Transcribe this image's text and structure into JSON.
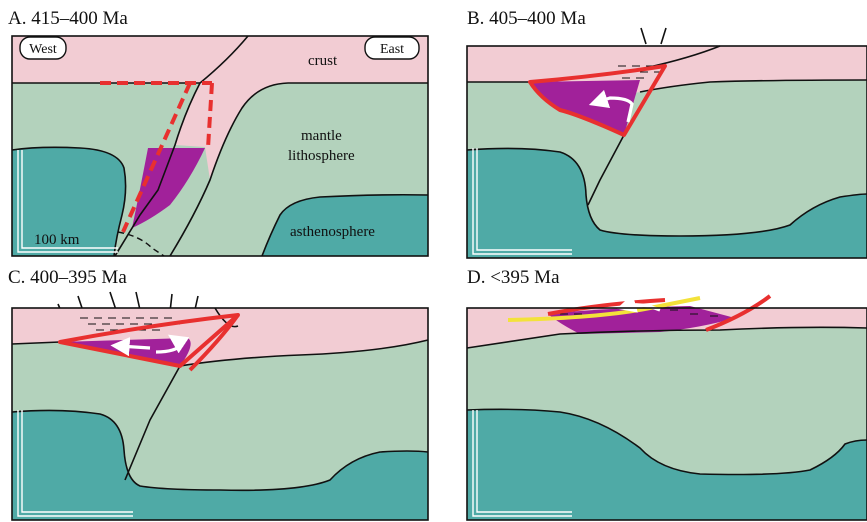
{
  "panels": [
    {
      "id": "A",
      "title": "A. 415–400 Ma"
    },
    {
      "id": "B",
      "title": "B. 405–400 Ma"
    },
    {
      "id": "C",
      "title": "C. 400–395 Ma"
    },
    {
      "id": "D",
      "title": "D. <395 Ma"
    }
  ],
  "labels": {
    "west": "West",
    "east": "East",
    "crust": "crust",
    "mantle_line1": "mantle",
    "mantle_line2": "lithosphere",
    "asthenosphere": "asthenosphere",
    "scale_bar": "100 km"
  },
  "colors": {
    "crust": "#f2ccd3",
    "mantle_lithosphere": "#b3d2bc",
    "asthenosphere": "#4faaa6",
    "magma_body": "#a1219a",
    "red_outline": "#e8302f",
    "yellow_line": "#f3e23a",
    "arrow": "#ffffff",
    "ink": "#111111"
  }
}
